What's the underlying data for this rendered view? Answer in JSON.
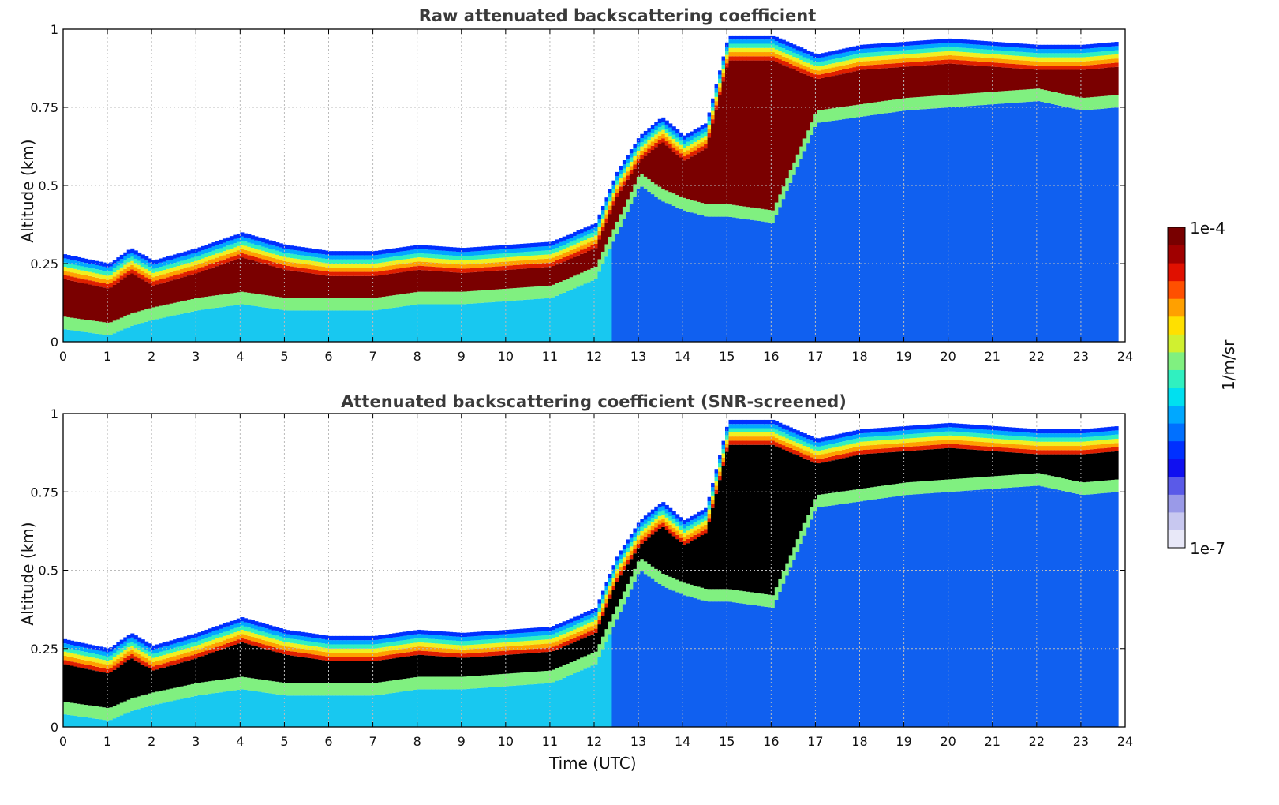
{
  "chart_data": [
    {
      "type": "heatmap",
      "title": "Raw attenuated backscattering coefficient",
      "xlabel": "",
      "ylabel": "Altitude (km)",
      "xlim": [
        0,
        24
      ],
      "ylim": [
        0,
        1
      ],
      "x_ticks": [
        "0",
        "1",
        "2",
        "3",
        "4",
        "5",
        "6",
        "7",
        "8",
        "9",
        "10",
        "11",
        "12",
        "13",
        "14",
        "15",
        "16",
        "17",
        "18",
        "19",
        "20",
        "21",
        "22",
        "23",
        "24"
      ],
      "y_ticks": [
        "0",
        "0.25",
        "0.5",
        "0.75",
        "1"
      ],
      "grid": true,
      "layer_top_km": {
        "x": [
          0,
          1,
          1.5,
          2,
          3,
          4,
          5,
          6,
          7,
          8,
          9,
          10,
          11,
          12,
          12.5,
          13,
          13.5,
          14,
          14.5,
          15,
          16,
          17,
          18,
          19,
          20,
          21,
          22,
          23,
          23.8
        ],
        "y": [
          0.28,
          0.25,
          0.3,
          0.26,
          0.3,
          0.35,
          0.31,
          0.29,
          0.29,
          0.31,
          0.3,
          0.31,
          0.32,
          0.38,
          0.55,
          0.66,
          0.72,
          0.66,
          0.7,
          0.98,
          0.98,
          0.92,
          0.95,
          0.96,
          0.97,
          0.96,
          0.95,
          0.95,
          0.96
        ]
      },
      "layer_base_km": {
        "x": [
          0,
          1,
          1.5,
          2,
          3,
          4,
          5,
          6,
          7,
          8,
          9,
          10,
          11,
          12,
          12.5,
          13,
          13.5,
          14,
          14.5,
          15,
          16,
          17,
          18,
          19,
          20,
          21,
          22,
          23,
          23.8
        ],
        "y": [
          0.04,
          0.02,
          0.05,
          0.07,
          0.1,
          0.12,
          0.1,
          0.1,
          0.1,
          0.12,
          0.12,
          0.13,
          0.14,
          0.2,
          0.35,
          0.5,
          0.45,
          0.42,
          0.4,
          0.4,
          0.38,
          0.7,
          0.72,
          0.74,
          0.75,
          0.76,
          0.77,
          0.74,
          0.75
        ]
      }
    },
    {
      "type": "heatmap",
      "title": "Attenuated backscattering coefficient (SNR-screened)",
      "xlabel": "Time (UTC)",
      "ylabel": "Altitude (km)",
      "xlim": [
        0,
        24
      ],
      "ylim": [
        0,
        1
      ],
      "x_ticks": [
        "0",
        "1",
        "2",
        "3",
        "4",
        "5",
        "6",
        "7",
        "8",
        "9",
        "10",
        "11",
        "12",
        "13",
        "14",
        "15",
        "16",
        "17",
        "18",
        "19",
        "20",
        "21",
        "22",
        "23",
        "24"
      ],
      "y_ticks": [
        "0",
        "0.25",
        "0.5",
        "0.75",
        "1"
      ],
      "grid": true,
      "saturated_color": "#000000"
    }
  ],
  "colorbar": {
    "label": "1/m/sr",
    "max_label": "1e-4",
    "min_label": "1e-7",
    "colors": [
      "#e8e8f8",
      "#c8c8f0",
      "#9a9ae8",
      "#5a5ae8",
      "#1010f0",
      "#0030ff",
      "#0070ff",
      "#00a8ff",
      "#00e0f0",
      "#30f0c0",
      "#80f080",
      "#d0f030",
      "#ffe000",
      "#ffa000",
      "#ff5000",
      "#e01000",
      "#a00000",
      "#780000"
    ]
  }
}
